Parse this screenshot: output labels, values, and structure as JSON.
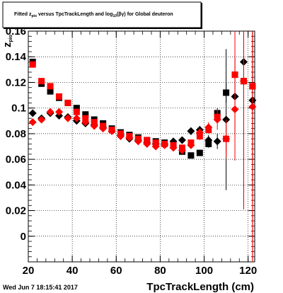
{
  "chart_data": {
    "type": "scatter",
    "title": "Fitted  z",
    "title_sub": "pio",
    "title_mid": "  versus  TpcTrackLength and log",
    "title_sub2": "10",
    "title_end": "(βγ) for Global deuteron",
    "xlabel": "TpcTrackLength (cm)",
    "ylabel": "z",
    "ylabel_sub": "pio",
    "timestamp": "Wed Jun  7 18:15:41 2017",
    "xlim": [
      20,
      123
    ],
    "ylim": [
      -0.02,
      0.16
    ],
    "xticks": [
      20,
      40,
      60,
      80,
      100,
      120
    ],
    "yticks": [
      0,
      0.02,
      0.04,
      0.06,
      0.08,
      0.1,
      0.12,
      0.14,
      0.16
    ],
    "ytick_labels": [
      "0",
      "0.02",
      "0.04",
      "0.06",
      "0.08",
      "0.1",
      "0.12",
      "0.14",
      "0.16"
    ],
    "grid": true,
    "series": [
      {
        "marker": "square",
        "color": "#000000",
        "points": [
          {
            "x": 22,
            "y": 0.136,
            "err": 0.002
          },
          {
            "x": 26,
            "y": 0.119,
            "err": 0.002
          },
          {
            "x": 30,
            "y": 0.113,
            "err": 0.002
          },
          {
            "x": 34,
            "y": 0.108,
            "err": 0.002
          },
          {
            "x": 38,
            "y": 0.104,
            "err": 0.002
          },
          {
            "x": 42,
            "y": 0.1,
            "err": 0.002
          },
          {
            "x": 46,
            "y": 0.095,
            "err": 0.002
          },
          {
            "x": 50,
            "y": 0.091,
            "err": 0.002
          },
          {
            "x": 54,
            "y": 0.088,
            "err": 0.002
          },
          {
            "x": 58,
            "y": 0.084,
            "err": 0.002
          },
          {
            "x": 62,
            "y": 0.081,
            "err": 0.002
          },
          {
            "x": 66,
            "y": 0.079,
            "err": 0.002
          },
          {
            "x": 70,
            "y": 0.077,
            "err": 0.002
          },
          {
            "x": 74,
            "y": 0.075,
            "err": 0.002
          },
          {
            "x": 78,
            "y": 0.074,
            "err": 0.002
          },
          {
            "x": 82,
            "y": 0.073,
            "err": 0.002
          },
          {
            "x": 86,
            "y": 0.071,
            "err": 0.002
          },
          {
            "x": 90,
            "y": 0.066,
            "err": 0.002
          },
          {
            "x": 94,
            "y": 0.063,
            "err": 0.002
          },
          {
            "x": 98,
            "y": 0.065,
            "err": 0.002
          },
          {
            "x": 102,
            "y": 0.072,
            "err": 0.003
          },
          {
            "x": 106,
            "y": 0.096,
            "err": 0.004
          },
          {
            "x": 110,
            "y": 0.112,
            "err": 0.008
          },
          {
            "x": 114,
            "y": 0.126,
            "err": 0.012
          },
          {
            "x": 118,
            "y": 0.121,
            "err": 0.015
          },
          {
            "x": 122,
            "y": 0.117,
            "err": 0.012
          }
        ]
      },
      {
        "marker": "diamond",
        "color": "#000000",
        "points": [
          {
            "x": 22,
            "y": 0.096,
            "err": 0.002
          },
          {
            "x": 26,
            "y": 0.092,
            "err": 0.002
          },
          {
            "x": 30,
            "y": 0.096,
            "err": 0.002
          },
          {
            "x": 34,
            "y": 0.094,
            "err": 0.002
          },
          {
            "x": 38,
            "y": 0.093,
            "err": 0.002
          },
          {
            "x": 42,
            "y": 0.09,
            "err": 0.002
          },
          {
            "x": 46,
            "y": 0.088,
            "err": 0.002
          },
          {
            "x": 50,
            "y": 0.087,
            "err": 0.002
          },
          {
            "x": 54,
            "y": 0.085,
            "err": 0.002
          },
          {
            "x": 58,
            "y": 0.082,
            "err": 0.002
          },
          {
            "x": 62,
            "y": 0.079,
            "err": 0.002
          },
          {
            "x": 66,
            "y": 0.076,
            "err": 0.002
          },
          {
            "x": 70,
            "y": 0.075,
            "err": 0.002
          },
          {
            "x": 74,
            "y": 0.073,
            "err": 0.002
          },
          {
            "x": 78,
            "y": 0.072,
            "err": 0.002
          },
          {
            "x": 82,
            "y": 0.072,
            "err": 0.002
          },
          {
            "x": 86,
            "y": 0.074,
            "err": 0.002
          },
          {
            "x": 90,
            "y": 0.075,
            "err": 0.002
          },
          {
            "x": 94,
            "y": 0.082,
            "err": 0.003
          },
          {
            "x": 98,
            "y": 0.083,
            "err": 0.003
          },
          {
            "x": 102,
            "y": 0.075,
            "err": 0.004
          },
          {
            "x": 106,
            "y": 0.074,
            "err": 0.006
          },
          {
            "x": 110,
            "y": 0.091,
            "err": 0.055
          },
          {
            "x": 114,
            "y": 0.109,
            "err": 0.03
          },
          {
            "x": 118,
            "y": 0.136,
            "err": 0.11
          },
          {
            "x": 122,
            "y": 0.106,
            "err": 0.07
          }
        ]
      },
      {
        "marker": "square",
        "color": "#ff0000",
        "points": [
          {
            "x": 22,
            "y": 0.134,
            "err": 0.002
          },
          {
            "x": 26,
            "y": 0.121,
            "err": 0.002
          },
          {
            "x": 30,
            "y": 0.117,
            "err": 0.002
          },
          {
            "x": 34,
            "y": 0.109,
            "err": 0.002
          },
          {
            "x": 38,
            "y": 0.104,
            "err": 0.002
          },
          {
            "x": 42,
            "y": 0.097,
            "err": 0.002
          },
          {
            "x": 46,
            "y": 0.092,
            "err": 0.002
          },
          {
            "x": 50,
            "y": 0.089,
            "err": 0.002
          },
          {
            "x": 54,
            "y": 0.086,
            "err": 0.002
          },
          {
            "x": 58,
            "y": 0.083,
            "err": 0.002
          },
          {
            "x": 62,
            "y": 0.08,
            "err": 0.002
          },
          {
            "x": 66,
            "y": 0.078,
            "err": 0.002
          },
          {
            "x": 70,
            "y": 0.076,
            "err": 0.002
          },
          {
            "x": 74,
            "y": 0.075,
            "err": 0.002
          },
          {
            "x": 78,
            "y": 0.073,
            "err": 0.002
          },
          {
            "x": 82,
            "y": 0.072,
            "err": 0.002
          },
          {
            "x": 86,
            "y": 0.071,
            "err": 0.002
          },
          {
            "x": 90,
            "y": 0.069,
            "err": 0.002
          },
          {
            "x": 94,
            "y": 0.073,
            "err": 0.002
          },
          {
            "x": 98,
            "y": 0.078,
            "err": 0.003
          },
          {
            "x": 102,
            "y": 0.083,
            "err": 0.003
          },
          {
            "x": 106,
            "y": 0.093,
            "err": 0.005
          },
          {
            "x": 110,
            "y": 0.076,
            "err": 0.01
          },
          {
            "x": 114,
            "y": 0.126,
            "err": 0.04
          },
          {
            "x": 118,
            "y": 0.121,
            "err": 0.1
          },
          {
            "x": 122,
            "y": 0.117,
            "err": 0.14
          }
        ]
      },
      {
        "marker": "diamond",
        "color": "#ff0000",
        "points": [
          {
            "x": 22,
            "y": 0.089,
            "err": 0.002
          },
          {
            "x": 26,
            "y": 0.091,
            "err": 0.002
          },
          {
            "x": 30,
            "y": 0.097,
            "err": 0.002
          },
          {
            "x": 34,
            "y": 0.097,
            "err": 0.002
          },
          {
            "x": 38,
            "y": 0.092,
            "err": 0.002
          },
          {
            "x": 42,
            "y": 0.092,
            "err": 0.002
          },
          {
            "x": 46,
            "y": 0.089,
            "err": 0.002
          },
          {
            "x": 50,
            "y": 0.086,
            "err": 0.002
          },
          {
            "x": 54,
            "y": 0.084,
            "err": 0.002
          },
          {
            "x": 58,
            "y": 0.082,
            "err": 0.002
          },
          {
            "x": 62,
            "y": 0.078,
            "err": 0.002
          },
          {
            "x": 66,
            "y": 0.077,
            "err": 0.002
          },
          {
            "x": 70,
            "y": 0.074,
            "err": 0.002
          },
          {
            "x": 74,
            "y": 0.072,
            "err": 0.002
          },
          {
            "x": 78,
            "y": 0.07,
            "err": 0.002
          },
          {
            "x": 82,
            "y": 0.071,
            "err": 0.002
          },
          {
            "x": 86,
            "y": 0.069,
            "err": 0.002
          },
          {
            "x": 90,
            "y": 0.067,
            "err": 0.002
          },
          {
            "x": 94,
            "y": 0.071,
            "err": 0.002
          },
          {
            "x": 98,
            "y": 0.081,
            "err": 0.003
          },
          {
            "x": 102,
            "y": 0.085,
            "err": 0.004
          },
          {
            "x": 106,
            "y": 0.091,
            "err": 0.008
          },
          {
            "x": 110,
            "y": 0.076,
            "err": 0.015
          },
          {
            "x": 114,
            "y": 0.099,
            "err": 0.04
          },
          {
            "x": 118,
            "y": 0.121,
            "err": 0.1
          },
          {
            "x": 122,
            "y": 0.101,
            "err": 0.13
          }
        ]
      }
    ]
  }
}
